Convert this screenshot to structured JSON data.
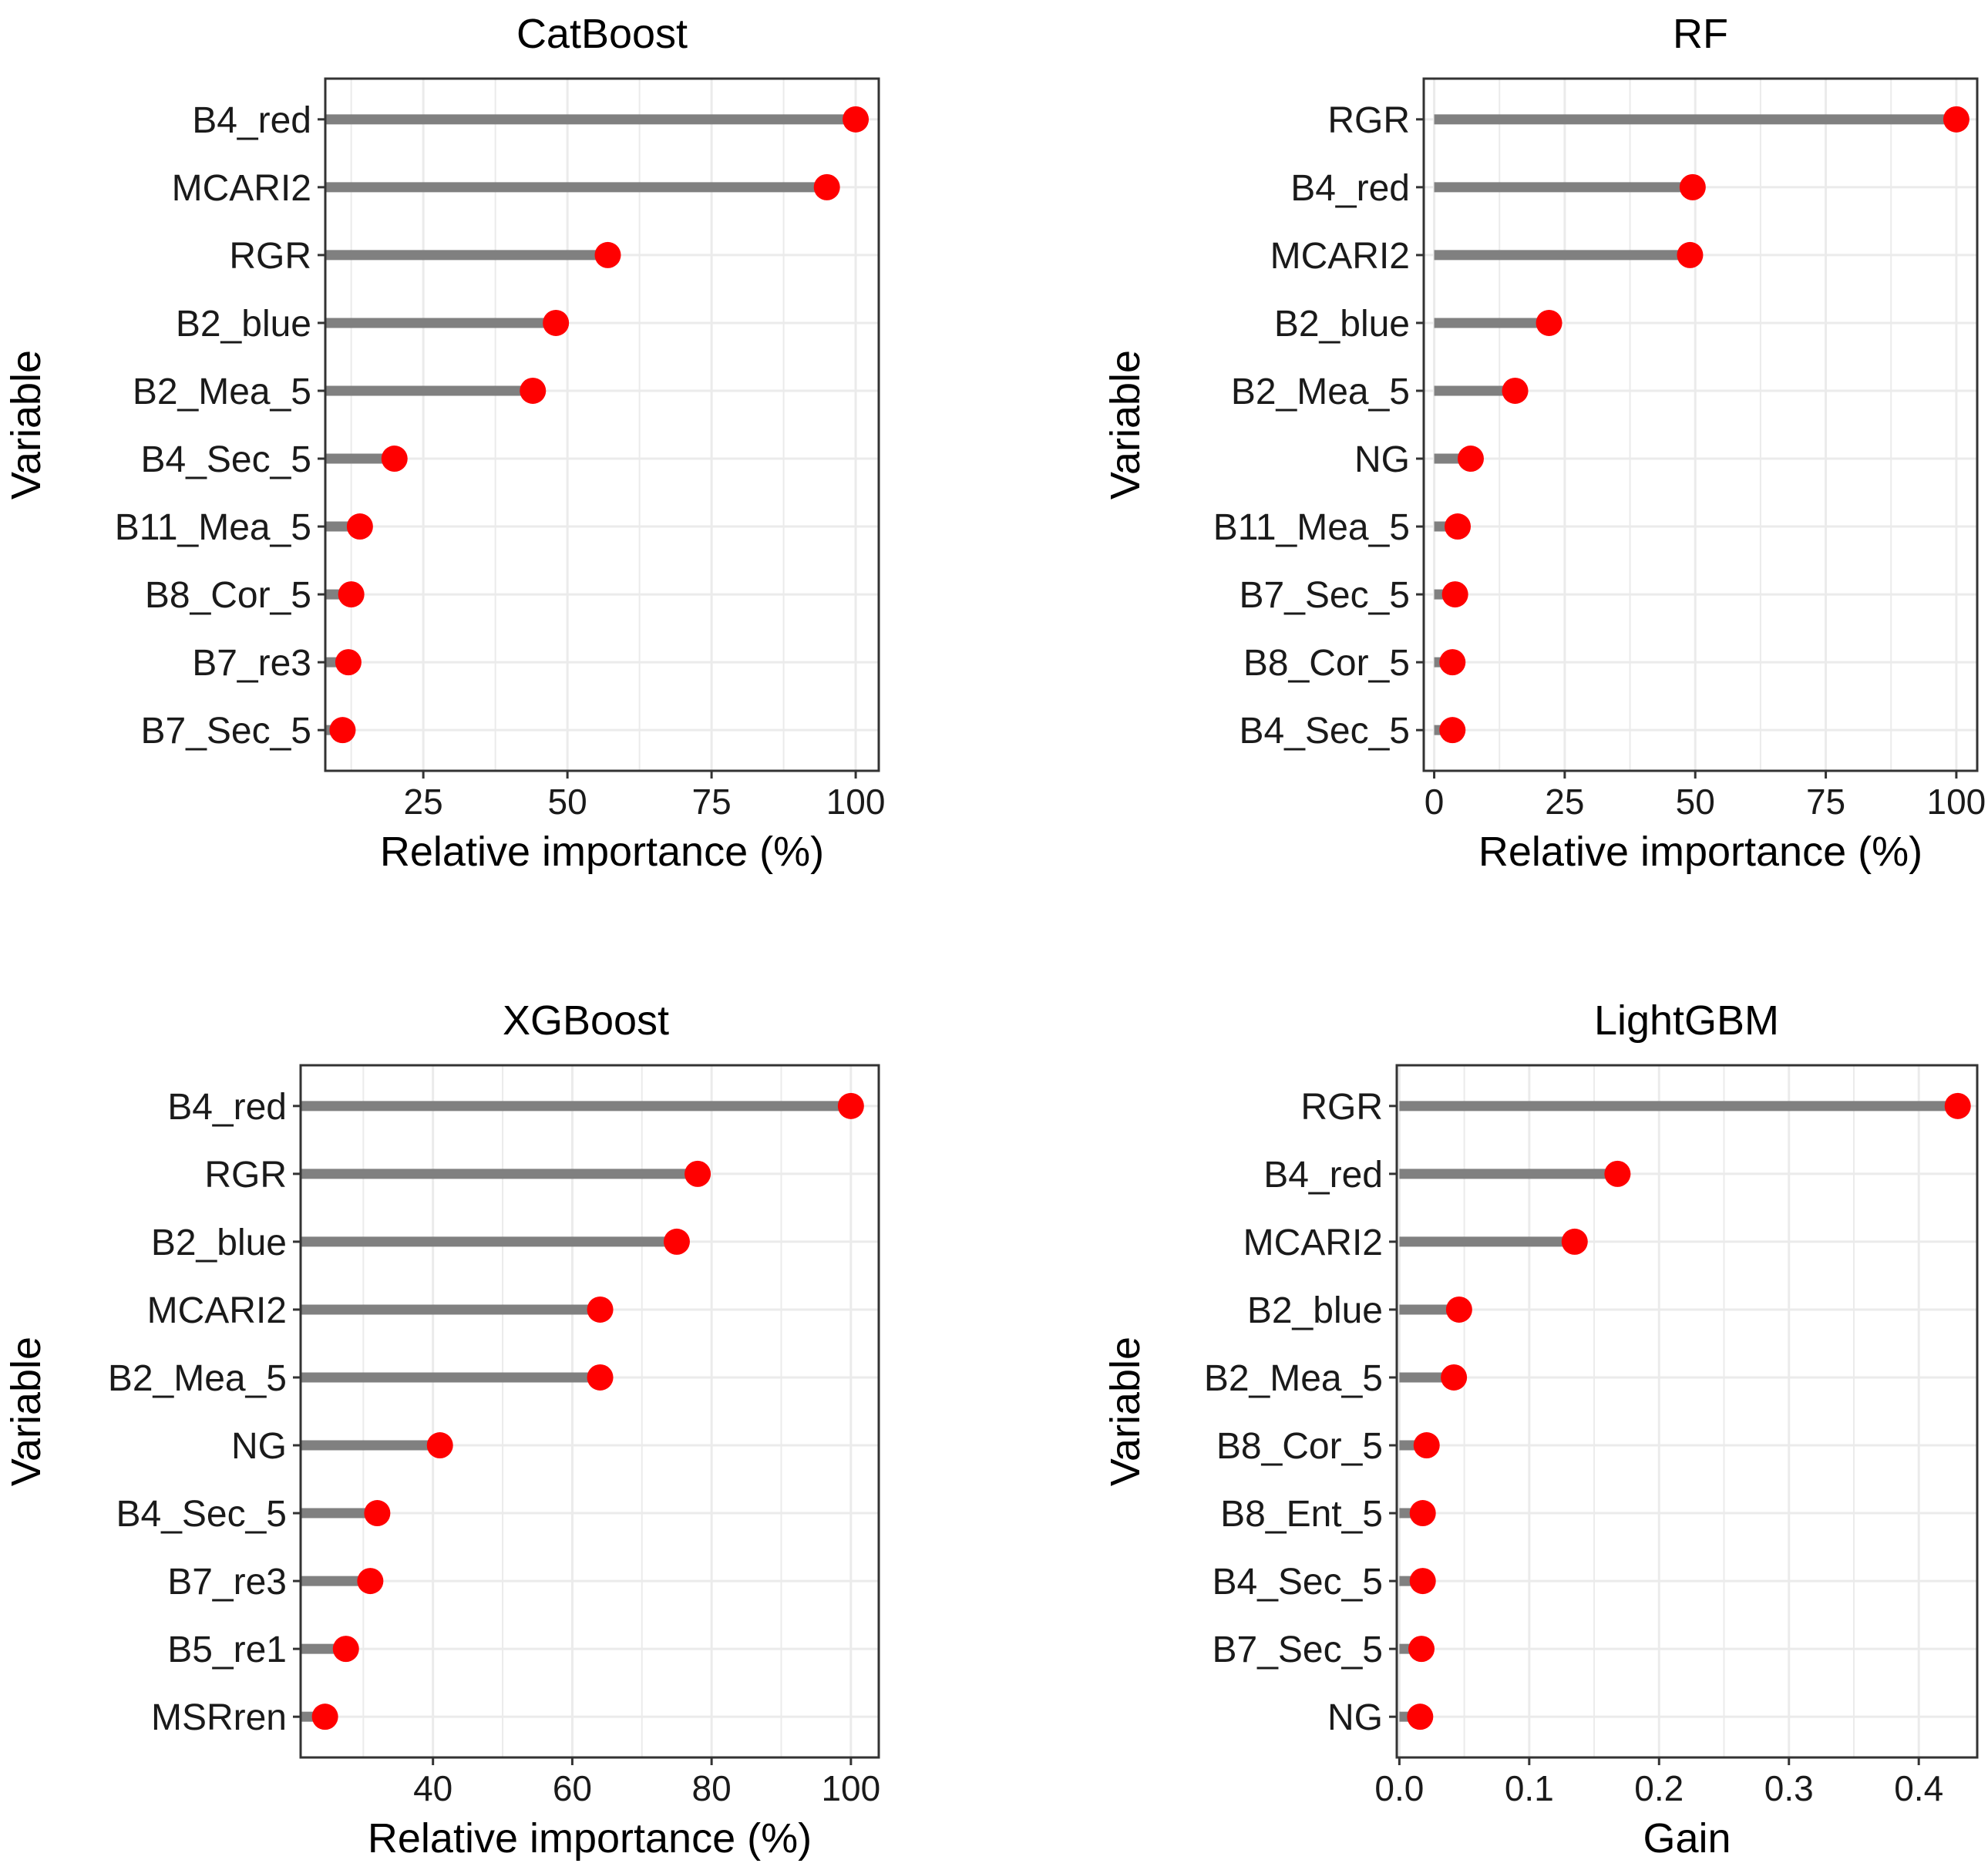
{
  "colors": {
    "stem": "#808080",
    "point": "#ff0000",
    "grid": "#ebebeb",
    "panel_border": "#333333",
    "background": "#ffffff"
  },
  "chart_data": [
    {
      "type": "lollipop",
      "title": "CatBoost",
      "xlabel": "Relative importance (%)",
      "ylabel": "Variable",
      "xlim": [
        8,
        104
      ],
      "xticks": [
        25,
        50,
        75,
        100
      ],
      "xtick_labels": [
        "25",
        "50",
        "75",
        "100"
      ],
      "stem_start": 8,
      "categories": [
        "B4_red",
        "MCARI2",
        "RGR",
        "B2_blue",
        "B2_Mea_5",
        "B4_Sec_5",
        "B11_Mea_5",
        "B8_Cor_5",
        "B7_re3",
        "B7_Sec_5"
      ],
      "values": [
        100,
        95,
        57,
        48,
        44,
        20,
        14,
        12.5,
        12,
        11
      ]
    },
    {
      "type": "lollipop",
      "title": "RF",
      "xlabel": "Relative importance (%)",
      "ylabel": "Variable",
      "xlim": [
        -2,
        104
      ],
      "xticks": [
        0,
        25,
        50,
        75,
        100
      ],
      "xtick_labels": [
        "0",
        "25",
        "50",
        "75",
        "100"
      ],
      "stem_start": 0,
      "categories": [
        "RGR",
        "B4_red",
        "MCARI2",
        "B2_blue",
        "B2_Mea_5",
        "NG",
        "B11_Mea_5",
        "B7_Sec_5",
        "B8_Cor_5",
        "B4_Sec_5"
      ],
      "values": [
        100,
        49.5,
        49,
        22,
        15.5,
        7,
        4.5,
        4,
        3.5,
        3.5
      ]
    },
    {
      "type": "lollipop",
      "title": "XGBoost",
      "xlabel": "Relative importance (%)",
      "ylabel": "Variable",
      "xlim": [
        21,
        104
      ],
      "xticks": [
        40,
        60,
        80,
        100
      ],
      "xtick_labels": [
        "40",
        "60",
        "80",
        "100"
      ],
      "stem_start": 21,
      "categories": [
        "B4_red",
        "RGR",
        "B2_blue",
        "MCARI2",
        "B2_Mea_5",
        "NG",
        "B4_Sec_5",
        "B7_re3",
        "B5_re1",
        "MSRren"
      ],
      "values": [
        100,
        78,
        75,
        64,
        64,
        41,
        32,
        31,
        27.5,
        24.5
      ]
    },
    {
      "type": "lollipop",
      "title": "LightGBM",
      "xlabel": "Gain",
      "ylabel": "Variable",
      "xlim": [
        -0.002,
        0.445
      ],
      "xticks": [
        0.0,
        0.1,
        0.2,
        0.3,
        0.4
      ],
      "xtick_labels": [
        "0.0",
        "0.1",
        "0.2",
        "0.3",
        "0.4"
      ],
      "stem_start": 0,
      "categories": [
        "RGR",
        "B4_red",
        "MCARI2",
        "B2_blue",
        "B2_Mea_5",
        "B8_Cor_5",
        "B8_Ent_5",
        "B4_Sec_5",
        "B7_Sec_5",
        "NG"
      ],
      "values": [
        0.43,
        0.168,
        0.135,
        0.046,
        0.042,
        0.021,
        0.018,
        0.018,
        0.017,
        0.016
      ]
    }
  ]
}
